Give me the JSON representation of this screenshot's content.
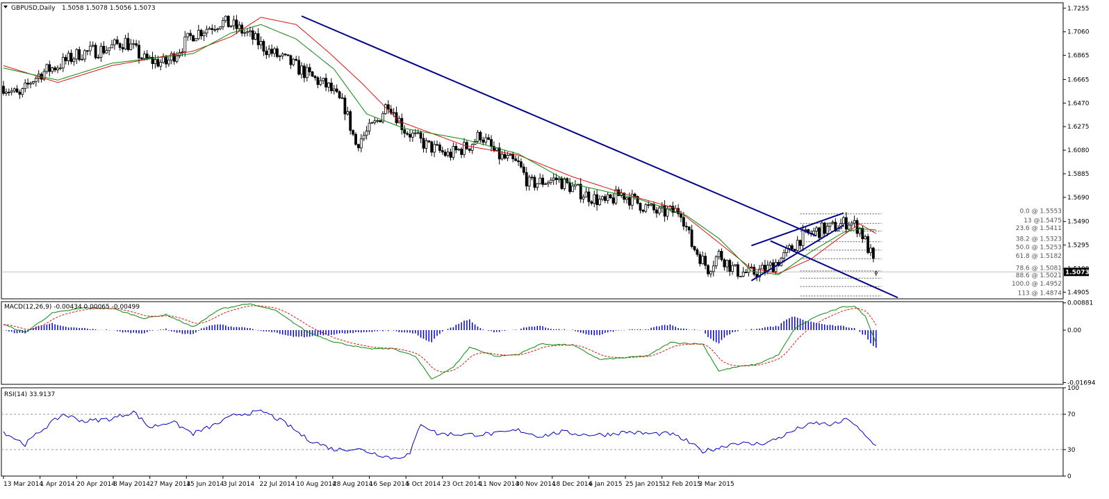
{
  "symbol_label": "GBPUSD,Daily",
  "ohlc_label": "1.5058 1.5078 1.5056 1.5073",
  "colors": {
    "bull": "#ffffff",
    "bear": "#000000",
    "sma_fast": "#0a8a0a",
    "sma_slow": "#e01010",
    "trendline": "#00008b",
    "fib": "#000000",
    "macd_hist": "#0000cc",
    "macd_line": "#0a8a0a",
    "macd_signal": "#e01010",
    "rsi": "#0000cc"
  },
  "chart_data": [
    {
      "type": "candlestick",
      "name": "price",
      "title": "GBPUSD,Daily",
      "ylim": [
        1.485,
        1.73
      ],
      "y_ticks": [
        "1.7255",
        "1.7060",
        "1.6865",
        "1.6665",
        "1.6470",
        "1.6275",
        "1.6080",
        "1.5885",
        "1.5690",
        "1.5490",
        "1.5295",
        "1.5100",
        "1.4905"
      ],
      "current_price": "1.5073",
      "x_ticks": [
        "13 Mar 2014",
        "1 Apr 2014",
        "20 Apr 2014",
        "8 May 2014",
        "27 May 2014",
        "15 Jun 2014",
        "3 Jul 2014",
        "22 Jul 2014",
        "10 Aug 2014",
        "28 Aug 2014",
        "16 Sep 2014",
        "5 Oct 2014",
        "23 Oct 2014",
        "11 Nov 2014",
        "30 Nov 2014",
        "18 Dec 2014",
        "6 Jan 2015",
        "25 Jan 2015",
        "12 Feb 2015",
        "3 Mar 2015"
      ],
      "bars_per_tick": 13.5,
      "anchors": [
        [
          0,
          1.661
        ],
        [
          6,
          1.652
        ],
        [
          10,
          1.665
        ],
        [
          14,
          1.672
        ],
        [
          20,
          1.678
        ],
        [
          28,
          1.688
        ],
        [
          38,
          1.692
        ],
        [
          45,
          1.698
        ],
        [
          52,
          1.683
        ],
        [
          60,
          1.68
        ],
        [
          70,
          1.704
        ],
        [
          80,
          1.714
        ],
        [
          84,
          1.712
        ],
        [
          90,
          1.704
        ],
        [
          98,
          1.69
        ],
        [
          106,
          1.68
        ],
        [
          114,
          1.668
        ],
        [
          120,
          1.66
        ],
        [
          126,
          1.643
        ],
        [
          130,
          1.613
        ],
        [
          138,
          1.632
        ],
        [
          142,
          1.648
        ],
        [
          148,
          1.625
        ],
        [
          156,
          1.612
        ],
        [
          164,
          1.604
        ],
        [
          172,
          1.612
        ],
        [
          176,
          1.621
        ],
        [
          182,
          1.604
        ],
        [
          190,
          1.596
        ],
        [
          194,
          1.58
        ],
        [
          204,
          1.584
        ],
        [
          214,
          1.572
        ],
        [
          222,
          1.564
        ],
        [
          228,
          1.572
        ],
        [
          236,
          1.562
        ],
        [
          242,
          1.556
        ],
        [
          250,
          1.558
        ],
        [
          254,
          1.53
        ],
        [
          260,
          1.51
        ],
        [
          264,
          1.522
        ],
        [
          270,
          1.508
        ],
        [
          276,
          1.506
        ],
        [
          282,
          1.51
        ],
        [
          288,
          1.52
        ],
        [
          294,
          1.535
        ],
        [
          300,
          1.541
        ],
        [
          306,
          1.544
        ],
        [
          312,
          1.549
        ],
        [
          316,
          1.543
        ],
        [
          320,
          1.522
        ],
        [
          322,
          1.507
        ]
      ],
      "sma_fast": [
        [
          0,
          1.676
        ],
        [
          20,
          1.666
        ],
        [
          40,
          1.68
        ],
        [
          70,
          1.688
        ],
        [
          84,
          1.705
        ],
        [
          95,
          1.712
        ],
        [
          108,
          1.7
        ],
        [
          122,
          1.675
        ],
        [
          134,
          1.638
        ],
        [
          148,
          1.626
        ],
        [
          170,
          1.617
        ],
        [
          190,
          1.605
        ],
        [
          210,
          1.58
        ],
        [
          234,
          1.568
        ],
        [
          252,
          1.554
        ],
        [
          264,
          1.535
        ],
        [
          276,
          1.508
        ],
        [
          286,
          1.505
        ],
        [
          298,
          1.524
        ],
        [
          310,
          1.54
        ],
        [
          316,
          1.543
        ],
        [
          322,
          1.542
        ]
      ],
      "sma_slow": [
        [
          0,
          1.678
        ],
        [
          20,
          1.664
        ],
        [
          40,
          1.678
        ],
        [
          70,
          1.69
        ],
        [
          84,
          1.702
        ],
        [
          95,
          1.718
        ],
        [
          108,
          1.712
        ],
        [
          120,
          1.689
        ],
        [
          132,
          1.664
        ],
        [
          146,
          1.632
        ],
        [
          170,
          1.612
        ],
        [
          190,
          1.604
        ],
        [
          210,
          1.586
        ],
        [
          232,
          1.57
        ],
        [
          248,
          1.56
        ],
        [
          262,
          1.535
        ],
        [
          276,
          1.51
        ],
        [
          286,
          1.506
        ],
        [
          298,
          1.518
        ],
        [
          310,
          1.538
        ],
        [
          316,
          1.547
        ],
        [
          322,
          1.539
        ]
      ],
      "trendlines": [
        {
          "a": [
            110,
            1.719
          ],
          "b": [
            300,
            1.537
          ]
        },
        {
          "a": [
            276,
            1.529
          ],
          "b": [
            310,
            1.556
          ]
        },
        {
          "a": [
            276,
            1.5
          ],
          "b": [
            310,
            1.546
          ]
        },
        {
          "a": [
            283,
            1.533
          ],
          "b": [
            330,
            1.486
          ]
        }
      ],
      "fib_levels": [
        {
          "label": "0.0 @ 1.5553",
          "value": 1.5553
        },
        {
          "label": "13 @1.5475",
          "value": 1.5475
        },
        {
          "label": "23.6 @ 1.5411",
          "value": 1.5411
        },
        {
          "label": "38.2 @ 1.5323",
          "value": 1.5323
        },
        {
          "label": "50.0 @ 1.5253",
          "value": 1.5253
        },
        {
          "label": "61.8 @ 1.5182",
          "value": 1.5182
        },
        {
          "label": "78.6 @ 1.5081",
          "value": 1.5081
        },
        {
          "label": "88.6 @ 1.5021",
          "value": 1.5021
        },
        {
          "label": "100.0 @ 1.4952",
          "value": 1.4952
        },
        {
          "label": "113 @ 1.4874",
          "value": 1.4874
        }
      ]
    },
    {
      "type": "bar",
      "name": "macd",
      "title": "MACD(12,26,9) -0.00434 0.00065 -0.00499",
      "ylim": [
        -0.0175,
        0.0092
      ],
      "y_ticks": [
        "0.00881",
        "0.00",
        "-0.01694"
      ],
      "anchors": [
        [
          0,
          0.0018
        ],
        [
          8,
          -0.0008
        ],
        [
          18,
          0.0055
        ],
        [
          30,
          0.0072
        ],
        [
          40,
          0.007
        ],
        [
          52,
          0.0038
        ],
        [
          60,
          0.005
        ],
        [
          70,
          0.001
        ],
        [
          80,
          0.0068
        ],
        [
          90,
          0.0085
        ],
        [
          100,
          0.0065
        ],
        [
          112,
          -0.0005
        ],
        [
          122,
          -0.0038
        ],
        [
          134,
          -0.006
        ],
        [
          144,
          -0.006
        ],
        [
          152,
          -0.0085
        ],
        [
          158,
          -0.0158
        ],
        [
          166,
          -0.012
        ],
        [
          172,
          -0.0055
        ],
        [
          182,
          -0.0085
        ],
        [
          190,
          -0.0078
        ],
        [
          198,
          -0.0045
        ],
        [
          210,
          -0.0048
        ],
        [
          220,
          -0.0095
        ],
        [
          228,
          -0.009
        ],
        [
          238,
          -0.0082
        ],
        [
          246,
          -0.004
        ],
        [
          258,
          -0.0045
        ],
        [
          264,
          -0.0132
        ],
        [
          270,
          -0.012
        ],
        [
          278,
          -0.011
        ],
        [
          286,
          -0.008
        ],
        [
          292,
          0.0005
        ],
        [
          300,
          0.0045
        ],
        [
          310,
          0.0075
        ],
        [
          314,
          0.0078
        ],
        [
          318,
          0.0045
        ],
        [
          322,
          -0.004
        ]
      ]
    },
    {
      "type": "line",
      "name": "rsi",
      "title": "RSI(14) 33.9137",
      "ylim": [
        0,
        100
      ],
      "y_ticks": [
        "100",
        "70",
        "30",
        "0"
      ],
      "levels": [
        70,
        30
      ],
      "anchors": [
        [
          0,
          50
        ],
        [
          8,
          36
        ],
        [
          14,
          52
        ],
        [
          22,
          70
        ],
        [
          30,
          62
        ],
        [
          40,
          65
        ],
        [
          48,
          73
        ],
        [
          54,
          55
        ],
        [
          62,
          62
        ],
        [
          70,
          48
        ],
        [
          78,
          58
        ],
        [
          86,
          70
        ],
        [
          96,
          73
        ],
        [
          104,
          60
        ],
        [
          112,
          42
        ],
        [
          122,
          30
        ],
        [
          130,
          31
        ],
        [
          138,
          25
        ],
        [
          144,
          20
        ],
        [
          150,
          25
        ],
        [
          154,
          60
        ],
        [
          160,
          48
        ],
        [
          172,
          47
        ],
        [
          182,
          48
        ],
        [
          190,
          52
        ],
        [
          198,
          45
        ],
        [
          206,
          50
        ],
        [
          214,
          47
        ],
        [
          222,
          47
        ],
        [
          230,
          50
        ],
        [
          238,
          48
        ],
        [
          246,
          48
        ],
        [
          252,
          40
        ],
        [
          258,
          28
        ],
        [
          264,
          32
        ],
        [
          270,
          38
        ],
        [
          276,
          36
        ],
        [
          282,
          38
        ],
        [
          288,
          46
        ],
        [
          294,
          55
        ],
        [
          300,
          60
        ],
        [
          306,
          58
        ],
        [
          312,
          65
        ],
        [
          318,
          45
        ],
        [
          322,
          34
        ]
      ]
    }
  ]
}
